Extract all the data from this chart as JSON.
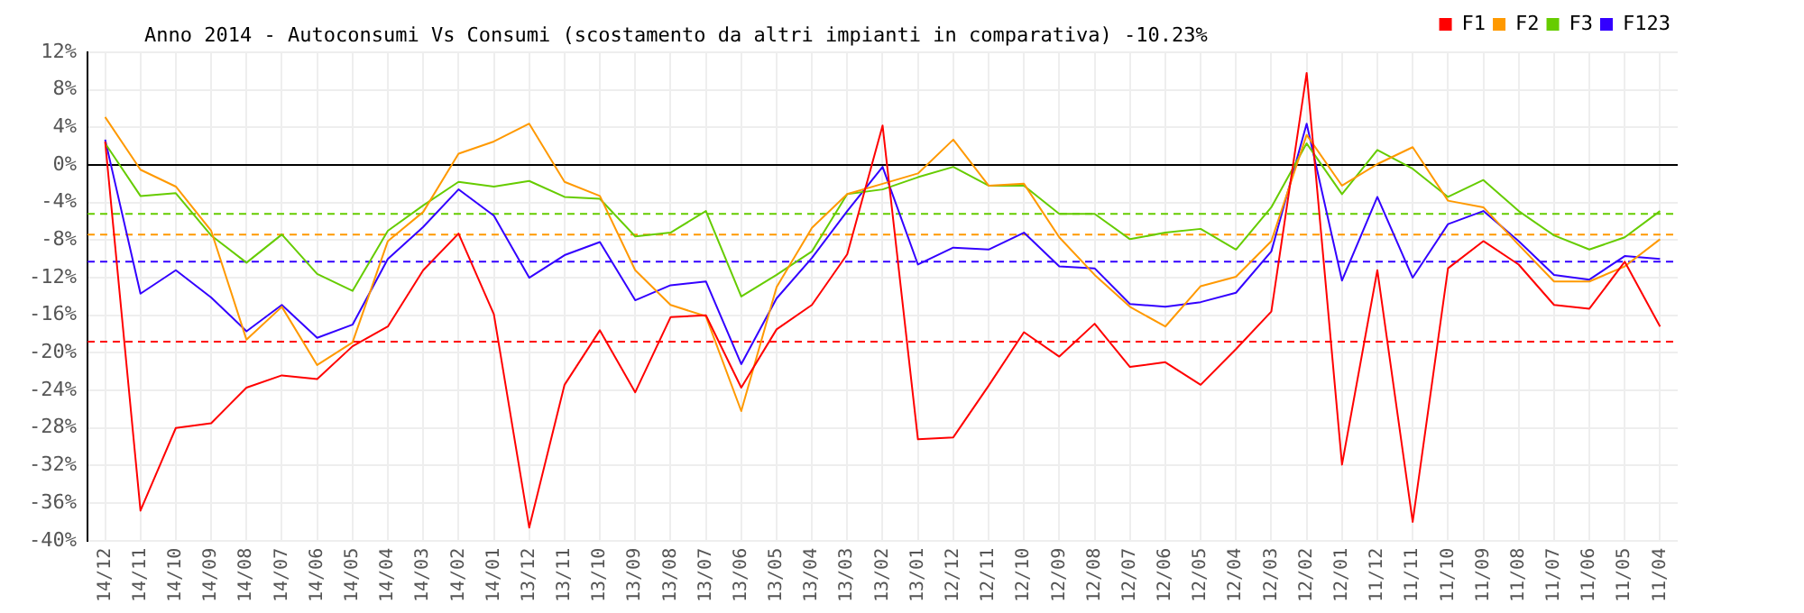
{
  "chart_data": {
    "type": "line",
    "title": "Anno 2014 - Autoconsumi Vs Consumi (scostamento da altri impianti in comparativa) -10.23%",
    "categories": [
      "14/12",
      "14/11",
      "14/10",
      "14/09",
      "14/08",
      "14/07",
      "14/06",
      "14/05",
      "14/04",
      "14/03",
      "14/02",
      "14/01",
      "13/12",
      "13/11",
      "13/10",
      "13/09",
      "13/08",
      "13/07",
      "13/06",
      "13/05",
      "13/04",
      "13/03",
      "13/02",
      "13/01",
      "12/12",
      "12/11",
      "12/10",
      "12/09",
      "12/08",
      "12/07",
      "12/06",
      "12/05",
      "12/04",
      "12/03",
      "12/02",
      "12/01",
      "11/12",
      "11/11",
      "11/10",
      "11/09",
      "11/08",
      "11/07",
      "11/06",
      "11/05",
      "11/04"
    ],
    "series": [
      {
        "name": "F1",
        "color": "#ff0000",
        "values": [
          2.5,
          -36.8,
          -28,
          -27.5,
          -23.7,
          -22.4,
          -22.8,
          -19.3,
          -17.2,
          -11.2,
          -7.3,
          -15.9,
          -38.6,
          -23.4,
          -17.6,
          -24.2,
          -16.2,
          -16,
          -23.7,
          -17.5,
          -14.9,
          -9.5,
          4.2,
          -29.2,
          -29,
          -23.5,
          -17.8,
          -20.4,
          -16.9,
          -21.5,
          -21,
          -23.4,
          -19.6,
          -15.6,
          9.8,
          -31.9,
          -11.2,
          -38,
          -11,
          -8.1,
          -10.6,
          -14.9,
          -15.3,
          -10.3,
          -17.2
        ]
      },
      {
        "name": "F2",
        "color": "#ff9900",
        "values": [
          5.1,
          -0.5,
          -2.3,
          -7,
          -18.6,
          -15.1,
          -21.3,
          -18.9,
          -8.1,
          -5,
          1.2,
          2.5,
          4.4,
          -1.8,
          -3.3,
          -11.2,
          -14.9,
          -16.1,
          -26.2,
          -13,
          -6.7,
          -3.1,
          -2,
          -0.9,
          2.7,
          -2.2,
          -2,
          -7.7,
          -11.7,
          -15.1,
          -17.2,
          -12.9,
          -11.9,
          -8.1,
          3.2,
          -2.2,
          0.1,
          1.9,
          -3.8,
          -4.5,
          -8.5,
          -12.4,
          -12.4,
          -10.8,
          -7.9
        ]
      },
      {
        "name": "F3",
        "color": "#66cc00",
        "values": [
          2.3,
          -3.3,
          -3,
          -7.5,
          -10.4,
          -7.4,
          -11.6,
          -13.4,
          -7,
          -4.3,
          -1.8,
          -2.3,
          -1.7,
          -3.4,
          -3.6,
          -7.6,
          -7.2,
          -4.9,
          -14,
          -11.7,
          -9.2,
          -3.1,
          -2.6,
          -1.3,
          -0.2,
          -2.2,
          -2.2,
          -5.2,
          -5.2,
          -7.9,
          -7.2,
          -6.8,
          -9,
          -4.5,
          2.3,
          -3.1,
          1.6,
          -0.4,
          -3.4,
          -1.6,
          -4.9,
          -7.5,
          -9,
          -7.7,
          -4.9
        ]
      },
      {
        "name": "F123",
        "color": "#3300ff",
        "values": [
          2.7,
          -13.7,
          -11.2,
          -14.1,
          -17.7,
          -14.9,
          -18.4,
          -17,
          -10,
          -6.6,
          -2.6,
          -5.4,
          -12,
          -9.6,
          -8.2,
          -14.4,
          -12.8,
          -12.4,
          -21.2,
          -14.2,
          -9.9,
          -4.9,
          -0.2,
          -10.6,
          -8.8,
          -9,
          -7.2,
          -10.8,
          -11,
          -14.8,
          -15.1,
          -14.6,
          -13.6,
          -9.2,
          4.4,
          -12.3,
          -3.4,
          -12,
          -6.3,
          -4.9,
          -8.1,
          -11.7,
          -12.2,
          -9.7,
          -10
        ]
      }
    ],
    "ylim": [
      -40,
      12
    ],
    "yticks": [
      {
        "value": -40,
        "label": "-40%"
      },
      {
        "value": -36,
        "label": "-36%"
      },
      {
        "value": -32,
        "label": "-32%"
      },
      {
        "value": -28,
        "label": "-28%"
      },
      {
        "value": -24,
        "label": "-24%"
      },
      {
        "value": -20,
        "label": "-20%"
      },
      {
        "value": -16,
        "label": "-16%"
      },
      {
        "value": -12,
        "label": "-12%"
      },
      {
        "value": -8,
        "label": "-8%"
      },
      {
        "value": -4,
        "label": "-4%"
      },
      {
        "value": 0,
        "label": "0%"
      },
      {
        "value": 4,
        "label": "4%"
      },
      {
        "value": 8,
        "label": "8%"
      },
      {
        "value": 12,
        "label": "12%"
      }
    ],
    "ref_lines": [
      {
        "axis": "y",
        "value": 0,
        "color": "#000000",
        "line_style": "solid"
      },
      {
        "axis": "y",
        "value": -5.2,
        "color": "#66cc00",
        "line_style": "dashed"
      },
      {
        "axis": "y",
        "value": -7.4,
        "color": "#ff9900",
        "line_style": "dashed"
      },
      {
        "axis": "y",
        "value": -10.3,
        "color": "#3300ff",
        "line_style": "dashed"
      },
      {
        "axis": "y",
        "value": -18.8,
        "color": "#ff0000",
        "line_style": "dashed"
      }
    ],
    "grid": true,
    "legend": "top right",
    "marker": "none",
    "line_style": "solid"
  }
}
